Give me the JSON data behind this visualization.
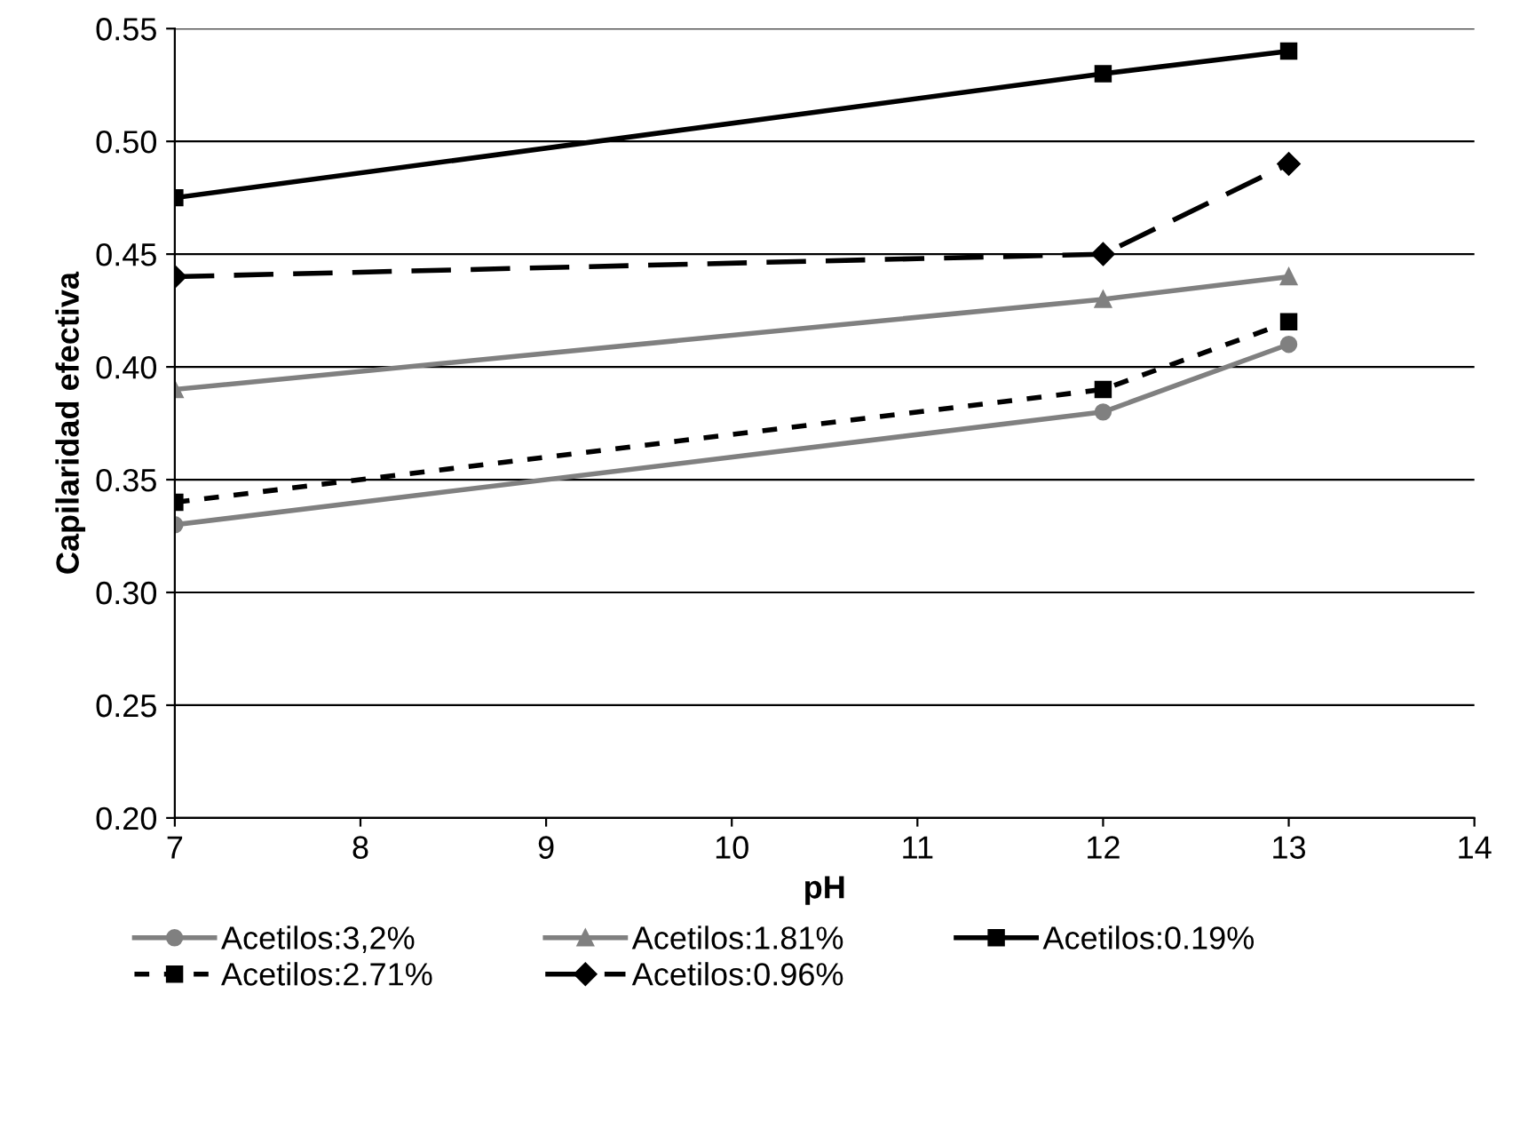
{
  "chart_data": {
    "type": "line",
    "xlabel": "pH",
    "ylabel": "Capilaridad efectiva",
    "xlim": [
      7,
      14
    ],
    "xticks": [
      7,
      8,
      9,
      10,
      11,
      12,
      13,
      14
    ],
    "ylim": [
      0.2,
      0.55
    ],
    "yticks": [
      {
        "value": 0.2,
        "label": "0.20"
      },
      {
        "value": 0.25,
        "label": "0.25"
      },
      {
        "value": 0.3,
        "label": "0.30"
      },
      {
        "value": 0.35,
        "label": "0.35"
      },
      {
        "value": 0.4,
        "label": "0.40"
      },
      {
        "value": 0.45,
        "label": "0.45"
      },
      {
        "value": 0.5,
        "label": "0.50"
      },
      {
        "value": 0.55,
        "label": "0.55"
      }
    ],
    "grid": "y",
    "legend": "bottom",
    "series": [
      {
        "name": "Acetilos:3,2%",
        "color": "#808080",
        "marker": "circle",
        "line_style": "solid",
        "x": [
          7,
          12,
          13
        ],
        "values": [
          0.33,
          0.38,
          0.41
        ]
      },
      {
        "name": "Acetilos:2.71%",
        "color": "#000000",
        "marker": "square",
        "line_style": "dotted",
        "x": [
          7,
          12,
          13
        ],
        "values": [
          0.34,
          0.39,
          0.42
        ]
      },
      {
        "name": "Acetilos:1.81%",
        "color": "#808080",
        "marker": "triangle",
        "line_style": "solid",
        "x": [
          7,
          12,
          13
        ],
        "values": [
          0.39,
          0.43,
          0.44
        ]
      },
      {
        "name": "Acetilos:0.96%",
        "color": "#000000",
        "marker": "diamond",
        "line_style": "dashed",
        "x": [
          7,
          12,
          13
        ],
        "values": [
          0.44,
          0.45,
          0.49
        ]
      },
      {
        "name": "Acetilos:0.19%",
        "color": "#000000",
        "marker": "square",
        "line_style": "solid",
        "x": [
          7,
          12,
          13
        ],
        "values": [
          0.475,
          0.53,
          0.54
        ]
      }
    ]
  }
}
